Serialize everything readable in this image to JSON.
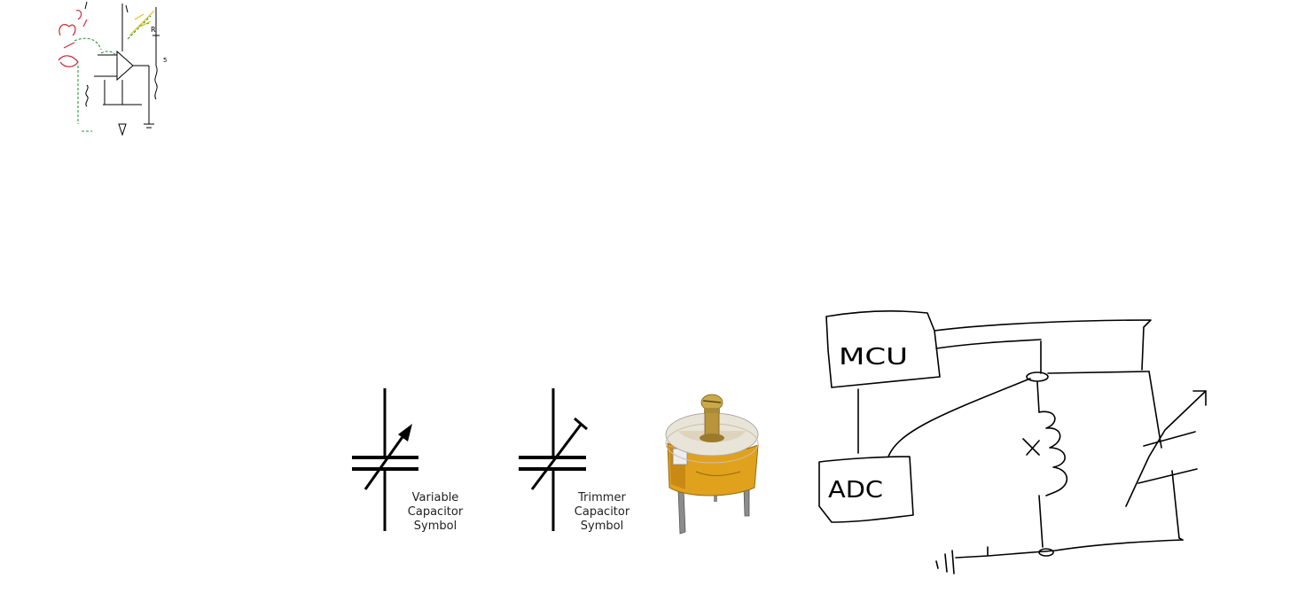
{
  "canvas": {
    "background": "#ffffff"
  },
  "sketch_thumbnail": {
    "ink_colors": {
      "black": "#000000",
      "red": "#cc2a3a",
      "green": "#2a9a3a",
      "yellow": "#e6c21a"
    }
  },
  "variable_capacitor": {
    "label_lines": [
      "Variable",
      "Capacitor",
      "Symbol"
    ]
  },
  "trimmer_capacitor": {
    "label_lines": [
      "Trimmer",
      "Capacitor",
      "Symbol"
    ]
  },
  "trimmer_photo": {
    "colors": {
      "body": "#e0a21c",
      "body_shadow": "#b87a10",
      "disc": "#e9e4d8",
      "brass": "#b8953a",
      "pin": "#8c8c8c"
    }
  },
  "circuit_sketch": {
    "mcu_label": "MCU",
    "adc_label": "ADC"
  }
}
